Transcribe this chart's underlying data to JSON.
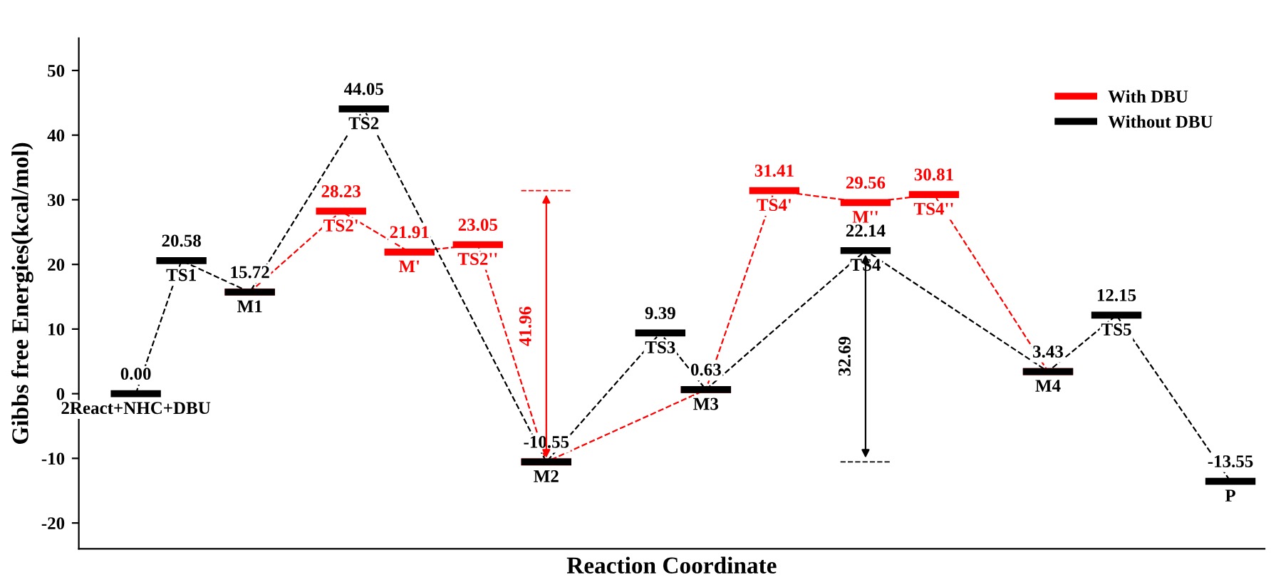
{
  "chart_data": {
    "type": "line",
    "ylabel": "Gibbs free Energies(kcal/mol)",
    "xlabel": "Reaction Coordinate",
    "ylim": [
      -24,
      55
    ],
    "yticks": [
      -20,
      -10,
      0,
      10,
      20,
      30,
      40,
      50
    ],
    "tick_labels": "y",
    "legend": "top right",
    "line_style": "dashed",
    "marker": "none",
    "categories": [
      null,
      null,
      null,
      null,
      null,
      null,
      null,
      null,
      null,
      null,
      null,
      null,
      null,
      null,
      null,
      null,
      null,
      null,
      null,
      null,
      null,
      null,
      null,
      null,
      null,
      null,
      null,
      null,
      null,
      null,
      null,
      null,
      null,
      null,
      null,
      null,
      null,
      null,
      null,
      null,
      null,
      null,
      null,
      null,
      null,
      null,
      null,
      null,
      null,
      null,
      null,
      null
    ],
    "series": [
      {
        "name": "With DBU",
        "color": "#ff0000",
        "values": [
          null,
          null,
          null,
          null,
          null,
          null,
          null,
          15.72,
          null,
          null,
          null,
          28.23,
          null,
          null,
          21.91,
          null,
          null,
          23.05,
          null,
          null,
          -10.55,
          null,
          null,
          null,
          null,
          null,
          null,
          0.63,
          null,
          null,
          31.41,
          null,
          null,
          null,
          29.56,
          null,
          null,
          30.81,
          null,
          null,
          null,
          null,
          3.43,
          null,
          null,
          null,
          null,
          null,
          null,
          null,
          null,
          null
        ],
        "value_labels": [
          null,
          null,
          null,
          null,
          null,
          null,
          null,
          null,
          null,
          null,
          null,
          "28.23",
          null,
          null,
          "21.91",
          null,
          null,
          "23.05",
          null,
          null,
          null,
          null,
          null,
          null,
          null,
          null,
          null,
          null,
          null,
          null,
          "31.41",
          null,
          null,
          null,
          "29.56",
          null,
          null,
          "30.81",
          null,
          null,
          null,
          null,
          null,
          null,
          null,
          null,
          null,
          null,
          null,
          null,
          null,
          null
        ]
      },
      {
        "name": "Without DBU",
        "color": "#000000",
        "values": [
          null,
          null,
          0.0,
          null,
          20.58,
          null,
          null,
          15.72,
          null,
          null,
          null,
          null,
          44.05,
          null,
          null,
          null,
          null,
          null,
          null,
          null,
          -10.55,
          null,
          null,
          null,
          null,
          9.39,
          null,
          0.63,
          null,
          null,
          null,
          null,
          null,
          null,
          22.14,
          null,
          null,
          null,
          null,
          null,
          null,
          null,
          3.43,
          null,
          null,
          12.15,
          null,
          null,
          null,
          null,
          -13.55,
          null
        ],
        "value_labels": [
          null,
          null,
          "0.00",
          null,
          "20.58",
          null,
          null,
          "15.72",
          null,
          null,
          null,
          null,
          "44.05",
          null,
          null,
          null,
          null,
          null,
          null,
          null,
          "-10.55",
          null,
          null,
          null,
          null,
          "9.39",
          null,
          "0.63",
          null,
          null,
          null,
          null,
          null,
          null,
          "22.14",
          null,
          null,
          null,
          null,
          null,
          null,
          null,
          "3.43",
          null,
          null,
          "12.15",
          null,
          null,
          null,
          null,
          "-13.55",
          null
        ]
      }
    ],
    "annotations": [
      "TS2'",
      "M'",
      "TS2''",
      "TS4'",
      "M''",
      "TS4''",
      "2React+NHC+DBU",
      "TS1",
      "M1",
      "TS2",
      "M2",
      "TS3",
      "M3",
      "TS4",
      "M4",
      "TS5",
      "P",
      "41.96",
      "32.69"
    ]
  }
}
